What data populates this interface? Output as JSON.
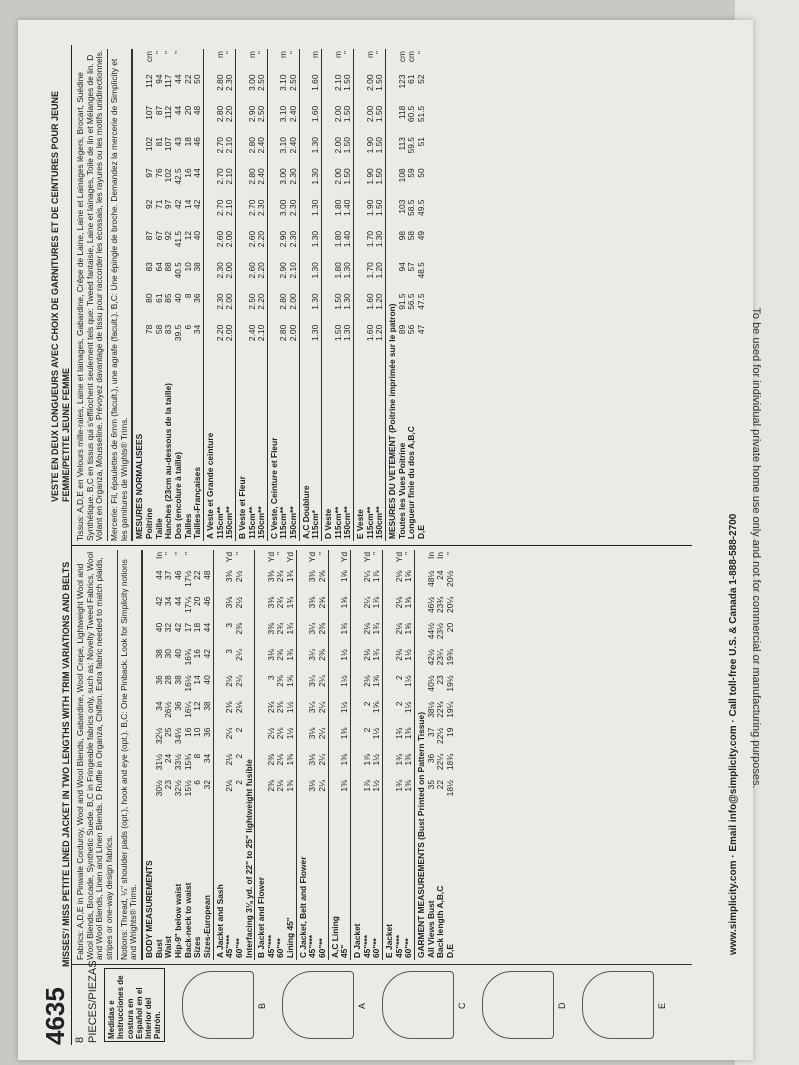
{
  "header": {
    "pattern_number": "4635",
    "pieces": "8 PIECES/PIEZAS",
    "spanish_note": "Medidas e Instrucciones de costura en Español en el Interior del Patrón.",
    "title": "MISSES'/ MISS PETITE LINED JACKET IN TWO LENGTHS WITH TRIM VARIATIONS AND BELTS",
    "title_fr": "VESTE EN DEUX LONGUEURS AVEC CHOIX DE GARNITURES ET DE CEINTURES POUR JEUNE FEMME/PETITE JEUNE FEMME"
  },
  "views": [
    "A",
    "B",
    "C",
    "D",
    "E"
  ],
  "english": {
    "fabrics": "Fabrics: A,D,E in Pinwale Corduroy, Wool and Wool Blends, Gabardine, Wool Crepe, Lightweight Wool and Wool Blends, Brocade, Synthetic Suede. B,C in Fringeable fabrics only, such as: Novelty Tweed Fabrics, Wool and Wool Blends, Linen and Linen Blends. D Ruffle in Organza, Chiffon. Extra fabric needed to match plaids, stripes or one-way design fabrics.",
    "notions": "Notions: Thread, ¼\" shoulder pads (opt.), hook and eye (opt.). B,C: One Pinback. Look for Simplicity notions and Wrights® Trims.",
    "rows": [
      {
        "section": "BODY MEASUREMENTS"
      },
      {
        "label": "Bust",
        "v": [
          "30½",
          "31½",
          "32½",
          "34",
          "36",
          "38",
          "40",
          "42",
          "44"
        ],
        "unit": "In"
      },
      {
        "label": "Waist",
        "v": [
          "23",
          "24",
          "25",
          "26½",
          "28",
          "30",
          "32",
          "34",
          "37"
        ],
        "unit": "\""
      },
      {
        "label": "Hip-9\" below waist",
        "v": [
          "32½",
          "33½",
          "34½",
          "36",
          "38",
          "40",
          "42",
          "44",
          "46"
        ],
        "unit": "\""
      },
      {
        "label": "Back-neck to waist",
        "v": [
          "15½",
          "15¾",
          "16",
          "16¼",
          "16½",
          "16¾",
          "17",
          "17¼",
          "17½"
        ],
        "unit": "\""
      },
      {
        "label": "Sizes",
        "v": [
          "6",
          "8",
          "10",
          "12",
          "14",
          "16",
          "18",
          "20",
          "22"
        ],
        "unit": ""
      },
      {
        "label": "Sizes-European",
        "v": [
          "32",
          "34",
          "36",
          "38",
          "40",
          "42",
          "44",
          "46",
          "48"
        ],
        "unit": ""
      },
      {
        "section": "A Jacket and Sash"
      },
      {
        "label": "45\"***",
        "v": [
          "2⅛",
          "2⅛",
          "2¼",
          "2⅜",
          "2½",
          "3",
          "3",
          "3⅛",
          "3⅜"
        ],
        "unit": "Yd"
      },
      {
        "label": "60\"**",
        "v": [
          "2",
          "2",
          "2",
          "2⅛",
          "2¼",
          "2¼",
          "2⅜",
          "2½",
          "2½"
        ],
        "unit": "\""
      },
      {
        "label": "Interfacing 3⅛ yd. of 22\" to 25\" lightweight fusible",
        "v": [],
        "unit": ""
      },
      {
        "section": "B Jacket and Flower"
      },
      {
        "label": "45\"***",
        "v": [
          "2⅜",
          "2⅜",
          "2½",
          "2¾",
          "3",
          "3⅛",
          "3⅜",
          "3⅜",
          "3⅜"
        ],
        "unit": "Yd"
      },
      {
        "label": "60\"**",
        "v": [
          "2⅛",
          "2⅛",
          "2⅛",
          "2⅜",
          "2⅜",
          "2⅝",
          "2¾",
          "2¾",
          "2¾"
        ],
        "unit": "\""
      },
      {
        "label": "Lining 45\"",
        "v": [
          "1⅜",
          "1⅜",
          "1½",
          "1½",
          "1⅝",
          "1¾",
          "1¾",
          "1¾",
          "1¾"
        ],
        "unit": "Yd"
      },
      {
        "section": "C Jacket, Belt and Flower"
      },
      {
        "label": "45\"***",
        "v": [
          "3⅛",
          "3⅛",
          "3⅛",
          "3¼",
          "3¼",
          "3¼",
          "3¼",
          "3⅜",
          "3⅜"
        ],
        "unit": "Yd"
      },
      {
        "label": "60\"**",
        "v": [
          "2¼",
          "2¼",
          "2¼",
          "2¼",
          "2¼",
          "2⅜",
          "2⅜",
          "2⅝",
          "2⅝"
        ],
        "unit": "\""
      },
      {
        "section": "A,C Lining"
      },
      {
        "label": "45\"",
        "v": [
          "1⅜",
          "1⅜",
          "1⅜",
          "1½",
          "1½",
          "1½",
          "1⅝",
          "1⅝",
          "1⅝"
        ],
        "unit": "Yd"
      },
      {
        "section": "D Jacket"
      },
      {
        "label": "45\"***",
        "v": [
          "1⅞",
          "1⅞",
          "2",
          "2",
          "2⅛",
          "2⅛",
          "2⅛",
          "2¼",
          "2¼"
        ],
        "unit": "Yd"
      },
      {
        "label": "60\"**",
        "v": [
          "1½",
          "1½",
          "1½",
          "1⅝",
          "1⅝",
          "1¾",
          "1¾",
          "1⅞",
          "1⅞"
        ],
        "unit": "\""
      },
      {
        "section": "E Jacket"
      },
      {
        "label": "45\"***",
        "v": [
          "1¾",
          "1¾",
          "1¾",
          "2",
          "2",
          "2⅛",
          "2⅛",
          "2⅛",
          "2⅛"
        ],
        "unit": "Yd"
      },
      {
        "label": "60\"**",
        "v": [
          "1⅜",
          "1⅜",
          "1⅜",
          "1½",
          "1½",
          "1½",
          "1⅝",
          "1⅝",
          "1⅝"
        ],
        "unit": "\""
      },
      {
        "section": "GARMENT MEASUREMENTS (Bust Printed on Pattern Tissue)"
      },
      {
        "label": "All Views Bust",
        "v": [
          "35",
          "36",
          "37",
          "38½",
          "40½",
          "42½",
          "44½",
          "46½",
          "48½"
        ],
        "unit": "In"
      },
      {
        "label": "Back length A,B,C",
        "v": [
          "22",
          "22¼",
          "22½",
          "22¾",
          "23",
          "23¼",
          "23½",
          "23¾",
          "24"
        ],
        "unit": "In"
      },
      {
        "label": "D,E",
        "v": [
          "18½",
          "18¾",
          "19",
          "19¼",
          "19½",
          "19¾",
          "20",
          "20¼",
          "20½"
        ],
        "unit": "\""
      }
    ]
  },
  "french": {
    "fabrics": "Tissus: A,D,E en Velours mille-raies, Laine et lainages, Gabardine, Crêpe de Laine, Laine et Lainages légers, Brocart, Suédine Synthétique. B,C en tissus qui s'effilochent seulement tels que: Tweed fantaisie, Laine et lainages, Toile de lin et Mélanges de lin. D Volant en Organza, Mousseline. Prévoyez davantage de tissu pour raccorder les écossais, les rayures ou les motifs unidirectionnels.",
    "notions": "Mercerie: Fil, épaulettes de 6mm (facult.), une agrafe (facult.). B,C: Une épingle de broche. Demandez la mercerie de Simplicity et les garnitures de Wrights® Trims.",
    "rows": [
      {
        "section": "MESURES NORMALISEES"
      },
      {
        "label": "Poitrine",
        "v": [
          "78",
          "80",
          "83",
          "87",
          "92",
          "97",
          "102",
          "107",
          "112"
        ],
        "unit": "cm"
      },
      {
        "label": "Taille",
        "v": [
          "58",
          "61",
          "64",
          "67",
          "71",
          "76",
          "81",
          "87",
          "94"
        ],
        "unit": "\""
      },
      {
        "label": "Hanches (23cm au-dessous de la taille)",
        "v": [
          "83",
          "85",
          "88",
          "92",
          "97",
          "102",
          "107",
          "112",
          "117"
        ],
        "unit": "\""
      },
      {
        "label": "Dos (encolure à taille)",
        "v": [
          "39.5",
          "40",
          "40.5",
          "41.5",
          "42",
          "42.5",
          "43",
          "44",
          "44"
        ],
        "unit": "\""
      },
      {
        "label": "Tailles",
        "v": [
          "6",
          "8",
          "10",
          "12",
          "14",
          "16",
          "18",
          "20",
          "22"
        ],
        "unit": ""
      },
      {
        "label": "Tailles-Françaises",
        "v": [
          "34",
          "36",
          "38",
          "40",
          "42",
          "44",
          "46",
          "48",
          "50"
        ],
        "unit": ""
      },
      {
        "section": "A Veste et Grande ceinture"
      },
      {
        "label": "115cm**",
        "v": [
          "2.20",
          "2.30",
          "2.30",
          "2.60",
          "2.70",
          "2.70",
          "2.70",
          "2.80",
          "2.80"
        ],
        "unit": "m"
      },
      {
        "label": "150cm**",
        "v": [
          "2.00",
          "2.00",
          "2.00",
          "2.00",
          "2.10",
          "2.10",
          "2.10",
          "2.20",
          "2.30"
        ],
        "unit": "\""
      },
      {
        "section": "B Veste et Fleur"
      },
      {
        "label": "115cm**",
        "v": [
          "2.40",
          "2.50",
          "2.60",
          "2.60",
          "2.70",
          "2.80",
          "2.80",
          "2.90",
          "3.00"
        ],
        "unit": "m"
      },
      {
        "label": "150cm**",
        "v": [
          "2.10",
          "2.20",
          "2.20",
          "2.20",
          "2.30",
          "2.40",
          "2.40",
          "2.50",
          "2.50"
        ],
        "unit": "\""
      },
      {
        "section": "C Veste, Ceinture et Fleur"
      },
      {
        "label": "115cm**",
        "v": [
          "2.80",
          "2.80",
          "2.90",
          "2.90",
          "3.00",
          "3.00",
          "3.10",
          "3.10",
          "3.10"
        ],
        "unit": "m"
      },
      {
        "label": "150cm**",
        "v": [
          "2.00",
          "2.00",
          "2.10",
          "2.30",
          "2.30",
          "2.30",
          "2.40",
          "2.40",
          "2.50"
        ],
        "unit": "\""
      },
      {
        "section": "A,C Doublure"
      },
      {
        "label": "115cm*",
        "v": [
          "1.30",
          "1.30",
          "1.30",
          "1.30",
          "1.30",
          "1.30",
          "1.30",
          "1.60",
          "1.60"
        ],
        "unit": "m"
      },
      {
        "section": "D Veste"
      },
      {
        "label": "115cm**",
        "v": [
          "1.50",
          "1.50",
          "1.80",
          "1.80",
          "1.80",
          "2.00",
          "2.00",
          "2.00",
          "2.10"
        ],
        "unit": "m"
      },
      {
        "label": "150cm**",
        "v": [
          "1.30",
          "1.30",
          "1.30",
          "1.40",
          "1.40",
          "1.50",
          "1.50",
          "1.50",
          "1.50"
        ],
        "unit": "\""
      },
      {
        "section": "E Veste"
      },
      {
        "label": "115cm**",
        "v": [
          "1.60",
          "1.60",
          "1.70",
          "1.70",
          "1.90",
          "1.90",
          "1.90",
          "2.00",
          "2.00"
        ],
        "unit": "m"
      },
      {
        "label": "150cm**",
        "v": [
          "1.20",
          "1.20",
          "1.20",
          "1.30",
          "1.50",
          "1.50",
          "1.50",
          "1.50",
          "1.50"
        ],
        "unit": "\""
      },
      {
        "section": "MESURES DU VETEMENT (Poitrine imprimée sur le patron)"
      },
      {
        "label": "Toutes les Vues Poitrine",
        "v": [
          "89",
          "91.5",
          "94",
          "98",
          "103",
          "108",
          "113",
          "118",
          "123"
        ],
        "unit": "cm"
      },
      {
        "label": "Longueur finie du dos A,B,C",
        "v": [
          "56",
          "56.5",
          "57",
          "58",
          "58.5",
          "59",
          "59.5",
          "60.5",
          "61"
        ],
        "unit": "cm"
      },
      {
        "label": "D,E",
        "v": [
          "47",
          "47.5",
          "48.5",
          "49",
          "49.5",
          "50",
          "51",
          "51.5",
          "52"
        ],
        "unit": "\""
      }
    ]
  },
  "contact": "www.simplicity.com · Email info@simplicity.com · Call toll-free U.S. & Canada 1-888-588-2700",
  "disclaimer": "To be used for individual private home use only and not for commercial or manufacturing purposes."
}
